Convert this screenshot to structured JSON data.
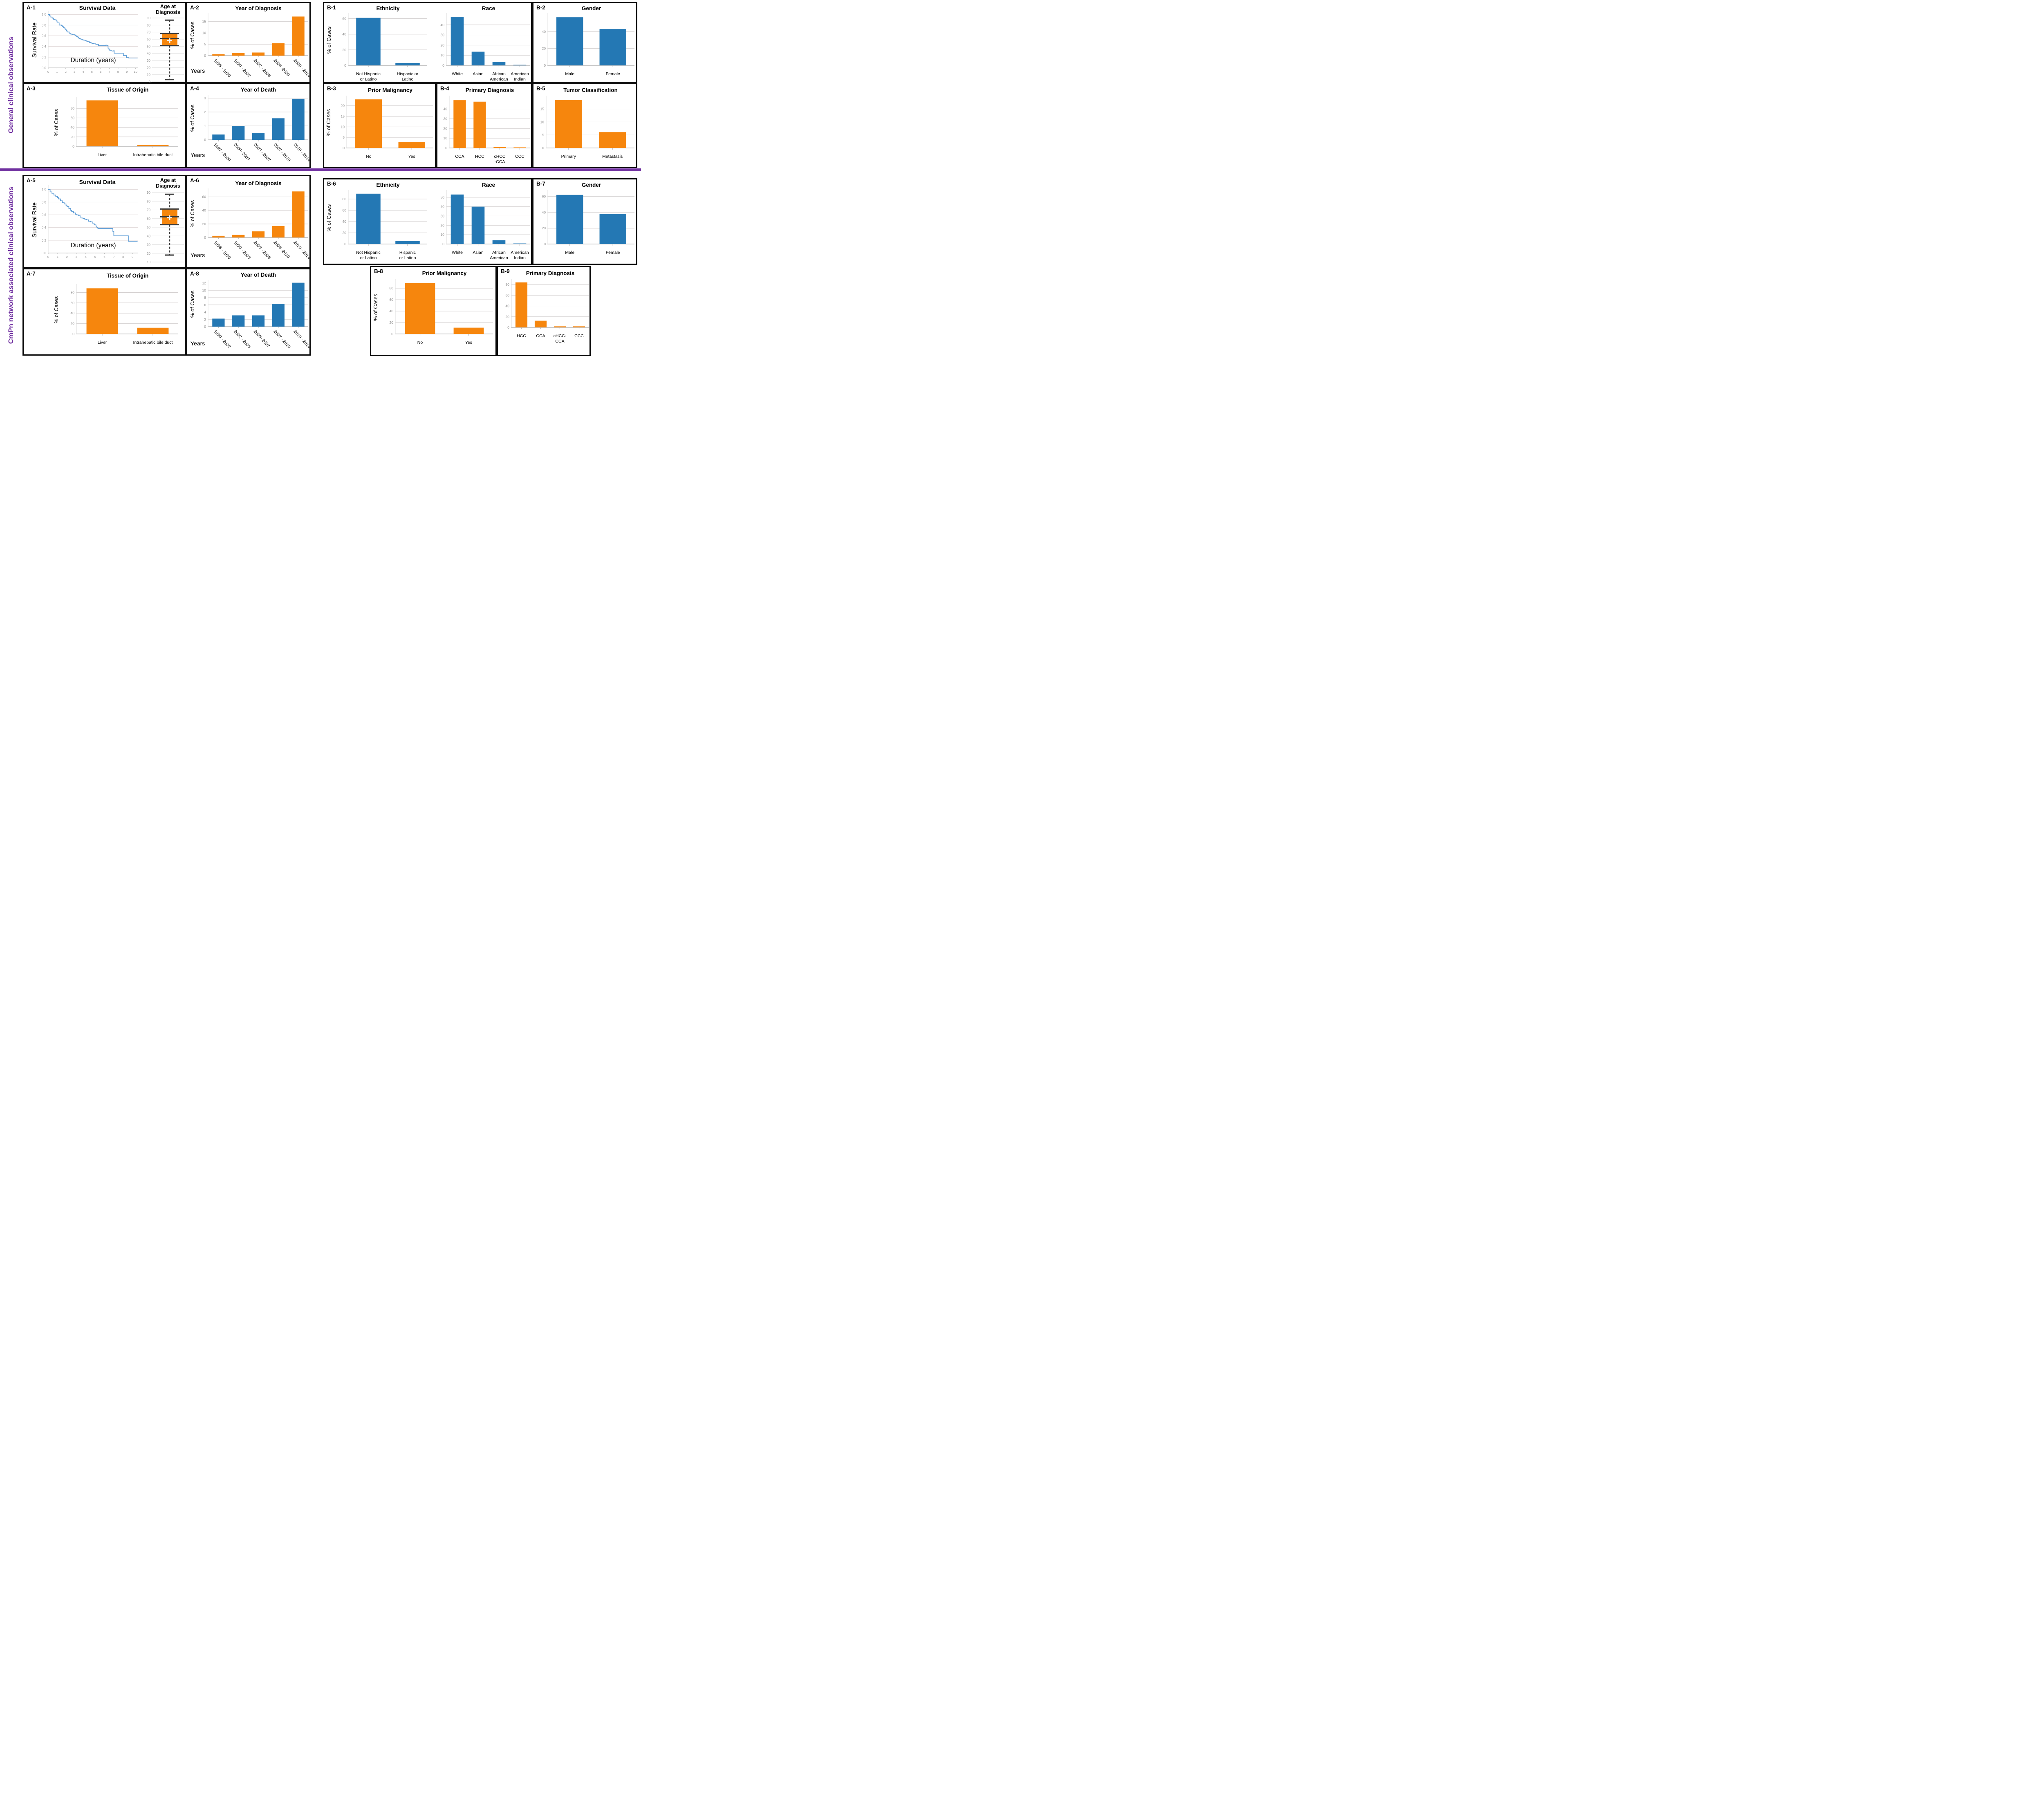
{
  "figure": {
    "section1_label": "General clinical observations",
    "section2_label": "CmPn network associated clinical observations"
  },
  "colors": {
    "orange": "#F6860D",
    "blue": "#2478B4",
    "curve_blue": "#5B9BD5",
    "purple": "#7030A0",
    "grid": "#D3CFCF",
    "axis": "#B9B9B9",
    "tick_text": "#8C8C8C"
  },
  "panel_labels": {
    "A1": "A-1",
    "A2": "A-2",
    "A3": "A-3",
    "A4": "A-4",
    "A5": "A-5",
    "A6": "A-6",
    "A7": "A-7",
    "A8": "A-8",
    "B1": "B-1",
    "B2": "B-2",
    "B3": "B-3",
    "B4": "B-4",
    "B5": "B-5",
    "B6": "B-6",
    "B7": "B-7",
    "B8": "B-8",
    "B9": "B-9"
  },
  "chart_data": [
    {
      "id": "A1surv",
      "type": "line",
      "title": "Survival Data",
      "ylabel": "Survival Rate",
      "xlabel": "Duration (years)",
      "xlim": [
        0,
        10.3
      ],
      "ylim": [
        0,
        1.04
      ],
      "xticks": [
        0,
        1,
        2,
        3,
        4,
        5,
        6,
        7,
        8,
        9,
        10
      ],
      "yticks": [
        0.0,
        0.2,
        0.4,
        0.6,
        0.8,
        1.0
      ],
      "points": [
        [
          0,
          1.0
        ],
        [
          0.15,
          0.97
        ],
        [
          0.3,
          0.95
        ],
        [
          0.45,
          0.93
        ],
        [
          0.6,
          0.91
        ],
        [
          0.75,
          0.9
        ],
        [
          0.9,
          0.88
        ],
        [
          1.0,
          0.86
        ],
        [
          1.1,
          0.84
        ],
        [
          1.25,
          0.8
        ],
        [
          1.5,
          0.79
        ],
        [
          1.6,
          0.77
        ],
        [
          1.75,
          0.75
        ],
        [
          1.9,
          0.73
        ],
        [
          2.0,
          0.71
        ],
        [
          2.1,
          0.69
        ],
        [
          2.25,
          0.67
        ],
        [
          2.4,
          0.65
        ],
        [
          2.5,
          0.64
        ],
        [
          2.6,
          0.63
        ],
        [
          2.75,
          0.62
        ],
        [
          3.0,
          0.615
        ],
        [
          3.1,
          0.6
        ],
        [
          3.25,
          0.585
        ],
        [
          3.4,
          0.57
        ],
        [
          3.5,
          0.555
        ],
        [
          3.6,
          0.545
        ],
        [
          3.75,
          0.535
        ],
        [
          3.9,
          0.525
        ],
        [
          4.0,
          0.52
        ],
        [
          4.2,
          0.51
        ],
        [
          4.35,
          0.5
        ],
        [
          4.5,
          0.49
        ],
        [
          4.7,
          0.475
        ],
        [
          4.9,
          0.465
        ],
        [
          5.0,
          0.455
        ],
        [
          5.2,
          0.45
        ],
        [
          5.4,
          0.445
        ],
        [
          5.5,
          0.44
        ],
        [
          5.75,
          0.42
        ],
        [
          6.3,
          0.42
        ],
        [
          6.6,
          0.425
        ],
        [
          6.7,
          0.42
        ],
        [
          6.85,
          0.37
        ],
        [
          6.95,
          0.35
        ],
        [
          7.05,
          0.32
        ],
        [
          7.3,
          0.315
        ],
        [
          7.5,
          0.32
        ],
        [
          7.55,
          0.275
        ],
        [
          8.5,
          0.275
        ],
        [
          8.6,
          0.23
        ],
        [
          8.9,
          0.23
        ],
        [
          8.95,
          0.19
        ],
        [
          9.2,
          0.185
        ],
        [
          9.6,
          0.185
        ],
        [
          10.2,
          0.19
        ]
      ]
    },
    {
      "id": "A1box",
      "type": "box",
      "title": "Age at Diagnosis",
      "title_lines": [
        "Age at",
        "Diagnosis"
      ],
      "ymin": 0,
      "ymax": 90,
      "ystep": 10,
      "low": 3,
      "q1": 51,
      "median": 61,
      "mean": 58,
      "q3": 68,
      "high": 87
    },
    {
      "id": "A2",
      "type": "bar",
      "title": "Year of Diagnosis",
      "ylabel": "% of Cases",
      "xlabel": "Years",
      "bar_color": "orange",
      "rotate": true,
      "categories": [
        "1995 - 1999",
        "1999 - 2002",
        "2002 - 2006",
        "2006 -2009",
        "2009 - 2014"
      ],
      "values": [
        0.6,
        1.2,
        1.35,
        5.4,
        17.2
      ],
      "yticks": [
        0,
        5,
        10,
        15
      ],
      "ylim": [
        0,
        18
      ]
    },
    {
      "id": "A3",
      "type": "bar",
      "title": "Tissue of Origin",
      "ylabel": "% of Cases",
      "xlabel": null,
      "bar_color": "orange",
      "rotate": false,
      "categories": [
        "Liver",
        "Intrahepatic bile duct"
      ],
      "values": [
        97,
        3
      ],
      "yticks": [
        0,
        20,
        40,
        60,
        80
      ],
      "ylim": [
        0,
        100
      ]
    },
    {
      "id": "A4",
      "type": "bar",
      "title": "Year of Death",
      "ylabel": "% of Cases",
      "xlabel": "Years",
      "bar_color": "blue",
      "rotate": true,
      "categories": [
        "1997 - 2000",
        "2000- 2003",
        "2003 - 2007",
        "2007 - 2010",
        "2010 - 2014"
      ],
      "values": [
        0.38,
        1.0,
        0.5,
        1.55,
        2.95
      ],
      "yticks": [
        0,
        1,
        2,
        3
      ],
      "ylim": [
        0,
        3.12
      ]
    },
    {
      "id": "B1eth",
      "type": "bar",
      "title": "Ethnicity",
      "ylabel": "% of Cases",
      "xlabel": null,
      "bar_color": "blue",
      "rotate": false,
      "categories": [
        "Not Hispanic\nor Latino",
        "Hispanic or\nLatino"
      ],
      "values": [
        61,
        3.2
      ],
      "yticks": [
        0,
        20,
        40,
        60
      ],
      "ylim": [
        0,
        65
      ]
    },
    {
      "id": "B1race",
      "type": "bar",
      "title": "Race",
      "ylabel": null,
      "xlabel": null,
      "bar_color": "blue",
      "rotate": false,
      "categories": [
        "White",
        "Asian",
        "African\nAmerican",
        "American\nIndian"
      ],
      "values": [
        48,
        13.5,
        3.5,
        0.6
      ],
      "yticks": [
        0,
        10,
        20,
        30,
        40
      ],
      "ylim": [
        0,
        50
      ]
    },
    {
      "id": "B2",
      "type": "bar",
      "title": "Gender",
      "ylabel": null,
      "xlabel": null,
      "bar_color": "blue",
      "rotate": false,
      "categories": [
        "Male",
        "Female"
      ],
      "values": [
        57,
        43
      ],
      "yticks": [
        0,
        20,
        40
      ],
      "ylim": [
        0,
        60
      ]
    },
    {
      "id": "B3",
      "type": "bar",
      "title": "Prior Malignancy",
      "ylabel": "% of Cases",
      "xlabel": null,
      "bar_color": "orange",
      "rotate": false,
      "categories": [
        "No",
        "Yes"
      ],
      "values": [
        23,
        2.9
      ],
      "yticks": [
        0,
        5,
        10,
        15,
        20
      ],
      "ylim": [
        0,
        24
      ]
    },
    {
      "id": "B4",
      "type": "bar",
      "title": "Primary Diagnosis",
      "ylabel": null,
      "xlabel": null,
      "bar_color": "orange",
      "rotate": false,
      "categories": [
        "CCA",
        "HCC",
        "cHCC\n-CCA",
        "CCC"
      ],
      "values": [
        49,
        47.5,
        1.2,
        0.6
      ],
      "yticks": [
        0,
        10,
        20,
        30,
        40
      ],
      "ylim": [
        0,
        52
      ]
    },
    {
      "id": "B5",
      "type": "bar",
      "title": "Tumor Classification",
      "ylabel": null,
      "xlabel": null,
      "bar_color": "orange",
      "rotate": false,
      "categories": [
        "Primary",
        "Metastasis"
      ],
      "values": [
        18.5,
        6.1
      ],
      "yticks": [
        0,
        5,
        10,
        15
      ],
      "ylim": [
        0,
        19.5
      ]
    },
    {
      "id": "A5surv",
      "type": "line",
      "title": "Survival Data",
      "ylabel": "Survival Rate",
      "xlabel": "Duration (years)",
      "xlim": [
        0,
        9.6
      ],
      "ylim": [
        0,
        1.04
      ],
      "xticks": [
        0,
        1,
        2,
        3,
        4,
        5,
        6,
        7,
        8,
        9
      ],
      "yticks": [
        0.0,
        0.2,
        0.4,
        0.6,
        0.8,
        1.0
      ],
      "points": [
        [
          0,
          1.0
        ],
        [
          0.2,
          0.96
        ],
        [
          0.4,
          0.93
        ],
        [
          0.6,
          0.91
        ],
        [
          0.8,
          0.89
        ],
        [
          1.0,
          0.87
        ],
        [
          1.1,
          0.85
        ],
        [
          1.3,
          0.82
        ],
        [
          1.5,
          0.79
        ],
        [
          1.7,
          0.77
        ],
        [
          1.9,
          0.75
        ],
        [
          2.0,
          0.73
        ],
        [
          2.2,
          0.7
        ],
        [
          2.4,
          0.67
        ],
        [
          2.5,
          0.65
        ],
        [
          2.7,
          0.63
        ],
        [
          2.9,
          0.61
        ],
        [
          3.0,
          0.6
        ],
        [
          3.2,
          0.585
        ],
        [
          3.4,
          0.565
        ],
        [
          3.5,
          0.55
        ],
        [
          3.7,
          0.54
        ],
        [
          3.9,
          0.53
        ],
        [
          4.1,
          0.52
        ],
        [
          4.3,
          0.5
        ],
        [
          4.5,
          0.49
        ],
        [
          4.7,
          0.47
        ],
        [
          4.9,
          0.45
        ],
        [
          5.0,
          0.44
        ],
        [
          5.1,
          0.42
        ],
        [
          5.2,
          0.4
        ],
        [
          5.3,
          0.385
        ],
        [
          6.0,
          0.385
        ],
        [
          6.8,
          0.385
        ],
        [
          6.9,
          0.34
        ],
        [
          7.0,
          0.27
        ],
        [
          7.8,
          0.27
        ],
        [
          8.5,
          0.27
        ],
        [
          8.55,
          0.185
        ],
        [
          9.1,
          0.185
        ],
        [
          9.5,
          0.19
        ]
      ]
    },
    {
      "id": "A5box",
      "type": "box",
      "title": "Age at Diagnosis",
      "title_lines": [
        "Age at",
        "Diagnosis"
      ],
      "ymin": 10,
      "ymax": 90,
      "ystep": 10,
      "low": 18,
      "q1": 53,
      "median": 62,
      "mean": 61,
      "q3": 71,
      "high": 88
    },
    {
      "id": "A6",
      "type": "bar",
      "title": "Year of Diagnosis",
      "ylabel": "% of Cases",
      "xlabel": "Years",
      "bar_color": "orange",
      "rotate": true,
      "categories": [
        "1996 - 1999",
        "1999 - 2003",
        "2003 - 2006",
        "2006 -2010",
        "2010 - 2014"
      ],
      "values": [
        2.5,
        3.8,
        9,
        17,
        68
      ],
      "yticks": [
        0,
        20,
        40,
        60
      ],
      "ylim": [
        0,
        70
      ]
    },
    {
      "id": "B6eth",
      "type": "bar",
      "title": "Ethnicity",
      "ylabel": "% of Cases",
      "xlabel": null,
      "bar_color": "blue",
      "rotate": false,
      "categories": [
        "Not Hispanic\nor Latino",
        "Hispanic\nor Latino"
      ],
      "values": [
        89.5,
        5.5
      ],
      "yticks": [
        0,
        20,
        40,
        60,
        80
      ],
      "ylim": [
        0,
        93
      ]
    },
    {
      "id": "B6race",
      "type": "bar",
      "title": "Race",
      "ylabel": null,
      "xlabel": null,
      "bar_color": "blue",
      "rotate": false,
      "categories": [
        "White",
        "Asian",
        "African\nAmerican",
        "American\nIndian"
      ],
      "values": [
        53,
        40,
        4,
        0.6
      ],
      "yticks": [
        0,
        10,
        20,
        30,
        40,
        50
      ],
      "ylim": [
        0,
        56
      ]
    },
    {
      "id": "B7",
      "type": "bar",
      "title": "Gender",
      "ylabel": null,
      "xlabel": null,
      "bar_color": "blue",
      "rotate": false,
      "categories": [
        "Male",
        "Female"
      ],
      "values": [
        62,
        38
      ],
      "yticks": [
        0,
        20,
        40,
        60
      ],
      "ylim": [
        0,
        66
      ]
    },
    {
      "id": "A7",
      "type": "bar",
      "title": "Tissue of Origin",
      "ylabel": "% of Cases",
      "xlabel": null,
      "bar_color": "orange",
      "rotate": false,
      "categories": [
        "Liver",
        "Intrahepatic  bile duct"
      ],
      "values": [
        88,
        12
      ],
      "yticks": [
        0,
        20,
        40,
        60,
        80
      ],
      "ylim": [
        0,
        93
      ]
    },
    {
      "id": "A8",
      "type": "bar",
      "title": "Year of Death",
      "ylabel": "% of Cases",
      "xlabel": "Years",
      "bar_color": "blue",
      "rotate": true,
      "categories": [
        "1999 - 2002",
        "2002 - 2005",
        "2005- 2007",
        "2007 - 2010",
        "2010 - 2014"
      ],
      "values": [
        2.2,
        3.1,
        3.1,
        6.3,
        12.1
      ],
      "yticks": [
        0,
        2,
        4,
        6,
        8,
        10,
        12
      ],
      "ylim": [
        0,
        12.4
      ]
    },
    {
      "id": "B8",
      "type": "bar",
      "title": "Prior Malignancy",
      "ylabel": "% of Cases",
      "xlabel": null,
      "bar_color": "orange",
      "rotate": false,
      "categories": [
        "No",
        "Yes"
      ],
      "values": [
        89,
        11
      ],
      "yticks": [
        0,
        20,
        40,
        60,
        80
      ],
      "ylim": [
        0,
        93
      ]
    },
    {
      "id": "B9",
      "type": "bar",
      "title": "Primary Diagnosis",
      "ylabel": null,
      "xlabel": null,
      "bar_color": "orange",
      "rotate": false,
      "categories": [
        "HCC",
        "CCA",
        "cHCC-\nCCA",
        "CCC"
      ],
      "values": [
        84,
        12.5,
        2,
        2
      ],
      "yticks": [
        0,
        20,
        40,
        60,
        80
      ],
      "ylim": [
        0,
        87
      ]
    }
  ]
}
